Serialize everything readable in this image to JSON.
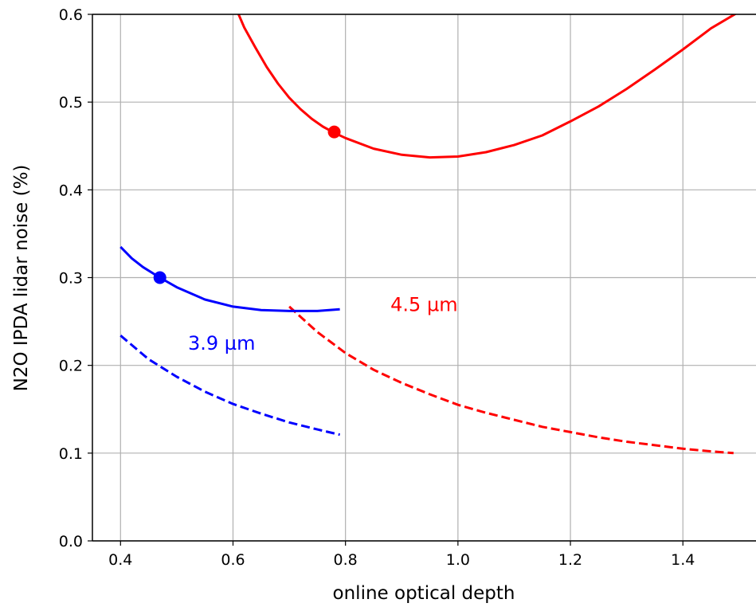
{
  "chart_data": {
    "type": "line",
    "title": "",
    "xlabel": "online optical depth",
    "ylabel": "N2O IPDA lidar noise (%)",
    "xlim": [
      0.35,
      1.53
    ],
    "ylim": [
      0.0,
      0.6
    ],
    "xticks": [
      0.4,
      0.6,
      0.8,
      1.0,
      1.2,
      1.4
    ],
    "xtick_labels": [
      "0.4",
      "0.6",
      "0.8",
      "1.0",
      "1.2",
      "1.4"
    ],
    "yticks": [
      0.0,
      0.1,
      0.2,
      0.3,
      0.4,
      0.5,
      0.6
    ],
    "ytick_labels": [
      "0.0",
      "0.1",
      "0.2",
      "0.3",
      "0.4",
      "0.5",
      "0.6"
    ],
    "grid": true,
    "legend": "none",
    "series": [
      {
        "color": "#ff0000",
        "style": "solid",
        "x": [
          0.61,
          0.62,
          0.64,
          0.66,
          0.68,
          0.7,
          0.72,
          0.74,
          0.76,
          0.78,
          0.8,
          0.85,
          0.9,
          0.95,
          1.0,
          1.05,
          1.1,
          1.15,
          1.2,
          1.25,
          1.3,
          1.35,
          1.4,
          1.45,
          1.5
        ],
        "y": [
          0.6,
          0.585,
          0.562,
          0.54,
          0.521,
          0.505,
          0.492,
          0.481,
          0.472,
          0.465,
          0.459,
          0.447,
          0.44,
          0.437,
          0.438,
          0.443,
          0.451,
          0.462,
          0.478,
          0.495,
          0.515,
          0.537,
          0.56,
          0.584,
          0.603
        ]
      },
      {
        "color": "#ff0000",
        "style": "dashed",
        "x": [
          0.7,
          0.75,
          0.8,
          0.85,
          0.9,
          0.95,
          1.0,
          1.05,
          1.1,
          1.15,
          1.2,
          1.25,
          1.3,
          1.35,
          1.4,
          1.45,
          1.49
        ],
        "y": [
          0.267,
          0.238,
          0.214,
          0.195,
          0.18,
          0.167,
          0.155,
          0.146,
          0.138,
          0.13,
          0.124,
          0.118,
          0.113,
          0.109,
          0.105,
          0.102,
          0.1
        ]
      },
      {
        "color": "#0000ff",
        "style": "solid",
        "x": [
          0.4,
          0.42,
          0.44,
          0.47,
          0.5,
          0.55,
          0.6,
          0.65,
          0.7,
          0.75,
          0.79
        ],
        "y": [
          0.335,
          0.322,
          0.312,
          0.3,
          0.289,
          0.275,
          0.267,
          0.263,
          0.262,
          0.262,
          0.264
        ]
      },
      {
        "color": "#0000ff",
        "style": "dashed",
        "x": [
          0.4,
          0.45,
          0.5,
          0.55,
          0.6,
          0.65,
          0.7,
          0.75,
          0.79
        ],
        "y": [
          0.234,
          0.207,
          0.187,
          0.17,
          0.156,
          0.145,
          0.135,
          0.127,
          0.121
        ]
      }
    ],
    "markers": [
      {
        "x": 0.78,
        "y": 0.466,
        "color": "#ff0000"
      },
      {
        "x": 0.47,
        "y": 0.3,
        "color": "#0000ff"
      }
    ],
    "annotations": [
      {
        "text": "4.5 µm",
        "x": 0.88,
        "y": 0.262,
        "color": "#ff0000"
      },
      {
        "text": "3.9 µm",
        "x": 0.52,
        "y": 0.218,
        "color": "#0000ff"
      }
    ]
  }
}
